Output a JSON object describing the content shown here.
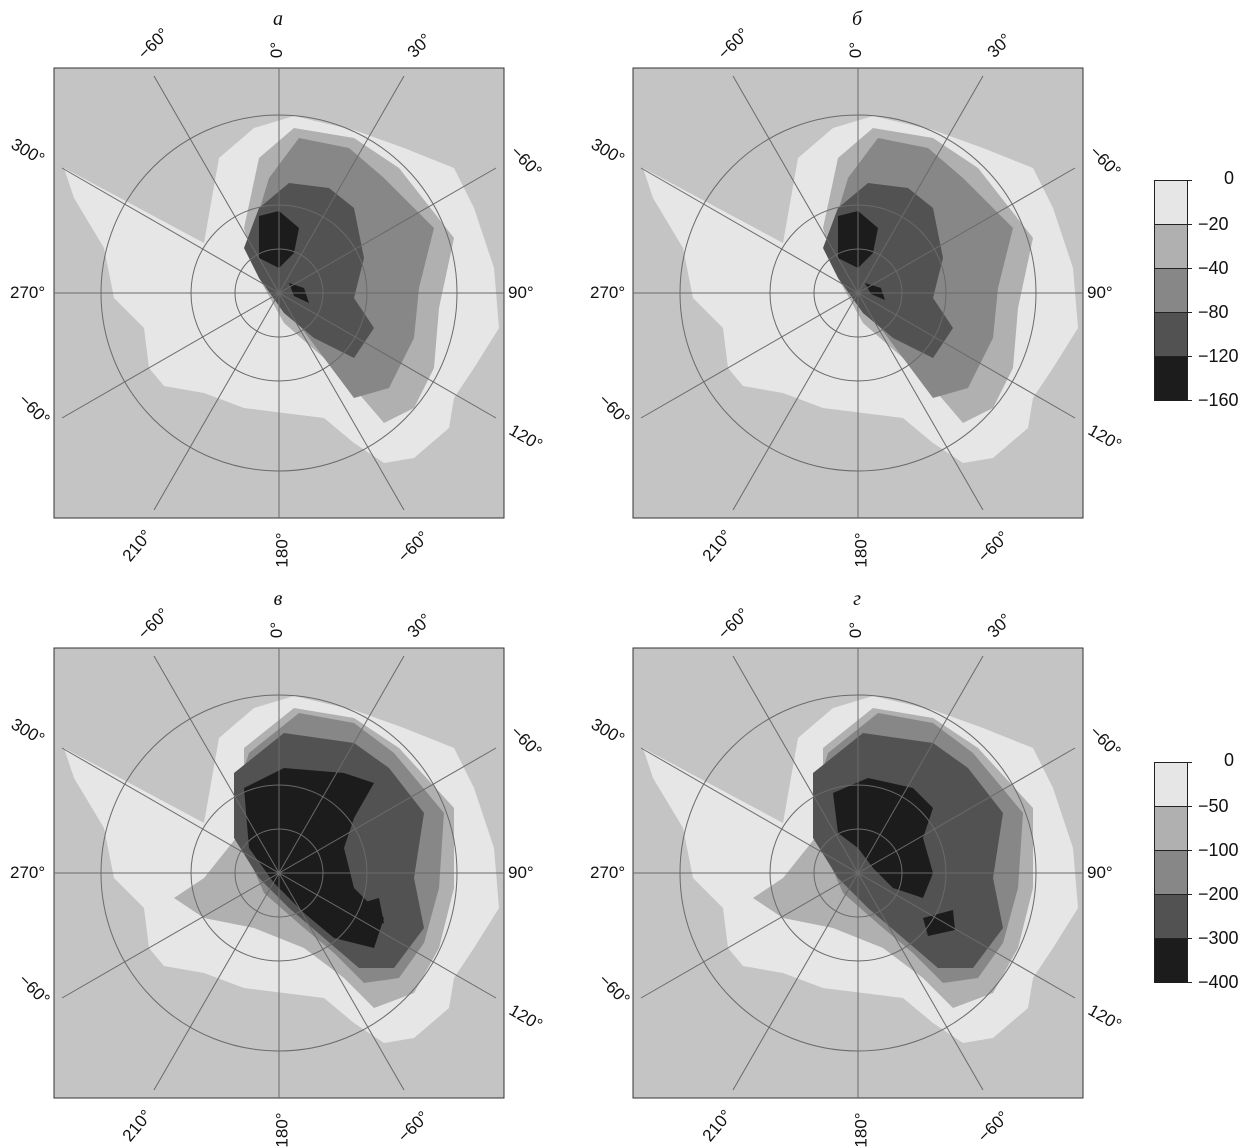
{
  "colors": {
    "background": "#c4c4c4",
    "grid": "#6a6a6a",
    "scale_0": "#e6e6e6",
    "scale_1": "#b0b0b0",
    "scale_2": "#878787",
    "scale_3": "#525252",
    "scale_4": "#1c1c1c"
  },
  "panels": [
    {
      "title": "а",
      "labels": {
        "top_left": "−60°",
        "top_center": "0°",
        "top_right": "30°",
        "left_upper": "300°",
        "left_mid": "270°",
        "left_lower": "−60°",
        "right_upper": "−60°",
        "right_mid": "90°",
        "right_lower": "120°",
        "bottom_left": "210°",
        "bottom_center": "180°",
        "bottom_right": "−60°"
      }
    },
    {
      "title": "б",
      "labels": {
        "top_left": "−60°",
        "top_center": "0°",
        "top_right": "30°",
        "left_upper": "300°",
        "left_mid": "270°",
        "left_lower": "−60°",
        "right_upper": "−60°",
        "right_mid": "90°",
        "right_lower": "120°",
        "bottom_left": "210°",
        "bottom_center": "180°",
        "bottom_right": "−60°"
      }
    },
    {
      "title": "в",
      "labels": {
        "top_left": "−60°",
        "top_center": "0°",
        "top_right": "30°",
        "left_upper": "300°",
        "left_mid": "270°",
        "left_lower": "−60°",
        "right_upper": "−60°",
        "right_mid": "90°",
        "right_lower": "120°",
        "bottom_left": "210°",
        "bottom_center": "180°",
        "bottom_right": "−60°"
      }
    },
    {
      "title": "г",
      "labels": {
        "top_left": "−60°",
        "top_center": "0°",
        "top_right": "30°",
        "left_upper": "300°",
        "left_mid": "270°",
        "left_lower": "−60°",
        "right_upper": "−60°",
        "right_mid": "90°",
        "right_lower": "120°",
        "bottom_left": "210°",
        "bottom_center": "180°",
        "bottom_right": "−60°"
      }
    }
  ],
  "legends": [
    {
      "ticks": [
        "0",
        "−20",
        "−40",
        "−80",
        "−120",
        "−160"
      ]
    },
    {
      "ticks": [
        "0",
        "−50",
        "−100",
        "−200",
        "−300",
        "−400"
      ]
    }
  ]
}
